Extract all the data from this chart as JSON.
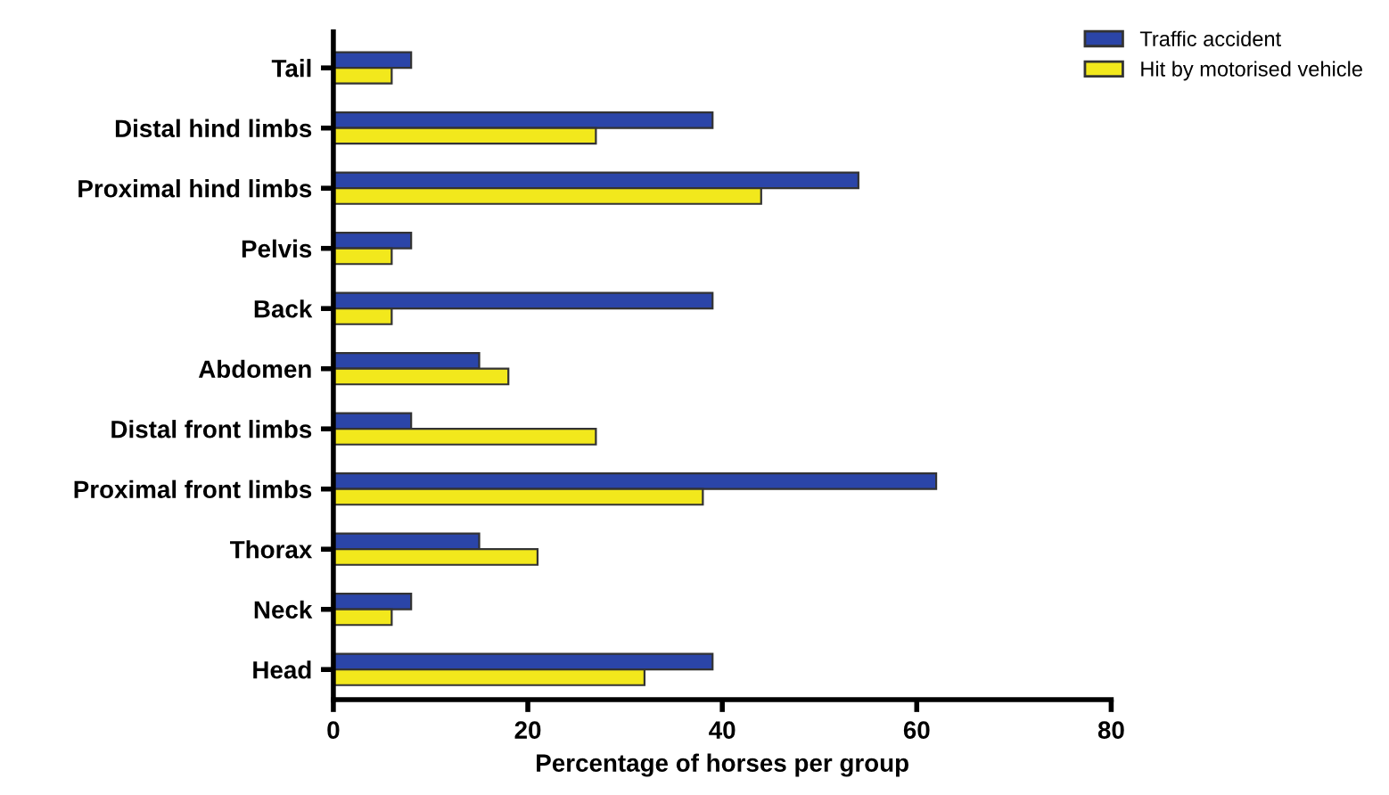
{
  "chart_data": {
    "type": "bar",
    "orientation": "horizontal",
    "xlabel": "Percentage of horses per group",
    "categories": [
      "Tail",
      "Distal hind limbs",
      "Proximal hind limbs",
      "Pelvis",
      "Back",
      "Abdomen",
      "Distal front limbs",
      "Proximal front limbs",
      "Thorax",
      "Neck",
      "Head"
    ],
    "series": [
      {
        "name": "Traffic accident",
        "color": "#2b45a8",
        "values": [
          8,
          39,
          54,
          8,
          39,
          15,
          8,
          62,
          15,
          8,
          39
        ]
      },
      {
        "name": "Hit by motorised vehicle",
        "color": "#f2e81c",
        "values": [
          6,
          27,
          44,
          6,
          6,
          18,
          27,
          38,
          21,
          6,
          32
        ]
      }
    ],
    "xlim": [
      0,
      80
    ],
    "xticks": [
      0,
      20,
      40,
      60,
      80
    ],
    "grid": false,
    "legend": "top right"
  }
}
